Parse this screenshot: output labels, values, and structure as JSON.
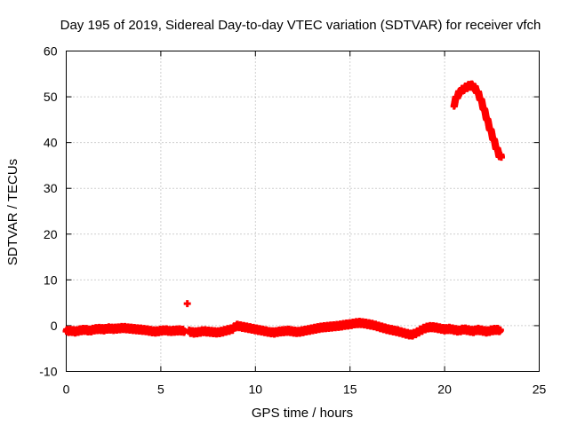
{
  "chart_data": {
    "type": "scatter",
    "title": "Day 195 of 2019, Sidereal Day-to-day VTEC variation (SDTVAR) for receiver vfch",
    "xlabel": "GPS time / hours",
    "ylabel": "SDTVAR / TECUs",
    "xlim": [
      0,
      25
    ],
    "ylim": [
      -10,
      60
    ],
    "xticks": [
      0,
      5,
      10,
      15,
      20,
      25
    ],
    "xtick_labels": [
      "0",
      "5",
      "10",
      "15",
      "20",
      "25"
    ],
    "yticks": [
      -10,
      0,
      10,
      20,
      30,
      40,
      50,
      60
    ],
    "ytick_labels": [
      "-10",
      "0",
      "10",
      "20",
      "30",
      "40",
      "50",
      "60"
    ],
    "grid": true,
    "series": [
      {
        "name": "SDTVAR",
        "color": "#ff0000",
        "marker": "plus",
        "x": [
          0.0,
          0.25,
          0.5,
          0.75,
          1.0,
          1.25,
          1.5,
          1.75,
          2.0,
          2.25,
          2.5,
          2.75,
          3.0,
          3.25,
          3.5,
          3.75,
          4.0,
          4.25,
          4.5,
          4.75,
          5.0,
          5.25,
          5.5,
          5.75,
          6.0,
          6.25,
          6.4,
          6.5,
          6.75,
          7.0,
          7.25,
          7.5,
          7.75,
          8.0,
          8.25,
          8.5,
          8.75,
          9.0,
          9.25,
          9.5,
          9.75,
          10.0,
          10.25,
          10.5,
          10.75,
          11.0,
          11.25,
          11.5,
          11.75,
          12.0,
          12.25,
          12.5,
          12.75,
          13.0,
          13.25,
          13.5,
          13.75,
          14.0,
          14.25,
          14.5,
          14.75,
          15.0,
          15.25,
          15.5,
          15.75,
          16.0,
          16.25,
          16.5,
          16.75,
          17.0,
          17.25,
          17.5,
          17.75,
          18.0,
          18.25,
          18.5,
          18.75,
          19.0,
          19.25,
          19.5,
          19.75,
          20.0,
          20.25,
          20.5,
          20.75,
          21.0,
          21.25,
          21.5,
          21.75,
          22.0,
          22.25,
          22.5,
          22.75,
          22.95,
          20.5,
          20.6,
          20.7,
          20.8,
          20.9,
          21.0,
          21.1,
          21.2,
          21.3,
          21.4,
          21.5,
          21.6,
          21.7,
          21.8,
          21.9,
          22.0,
          22.1,
          22.2,
          22.3,
          22.4,
          22.5,
          22.6,
          22.7,
          22.8,
          22.9,
          23.0
        ],
        "y": [
          -1.2,
          -1.1,
          -1.3,
          -1.0,
          -0.9,
          -1.1,
          -0.8,
          -0.7,
          -0.8,
          -0.6,
          -0.7,
          -0.6,
          -0.5,
          -0.6,
          -0.7,
          -0.8,
          -0.9,
          -1.0,
          -1.2,
          -1.3,
          -1.1,
          -1.0,
          -1.2,
          -1.1,
          -1.0,
          -1.2,
          4.8,
          -1.3,
          -1.5,
          -1.4,
          -1.2,
          -1.3,
          -1.4,
          -1.5,
          -1.3,
          -1.0,
          -0.8,
          0.0,
          -0.2,
          -0.4,
          -0.6,
          -0.8,
          -1.0,
          -1.2,
          -1.4,
          -1.5,
          -1.3,
          -1.2,
          -1.1,
          -1.3,
          -1.4,
          -1.2,
          -1.0,
          -0.8,
          -0.6,
          -0.4,
          -0.3,
          -0.2,
          -0.1,
          0.0,
          0.2,
          0.3,
          0.5,
          0.6,
          0.5,
          0.3,
          0.1,
          -0.2,
          -0.5,
          -0.8,
          -1.0,
          -1.2,
          -1.5,
          -1.8,
          -2.0,
          -1.6,
          -1.0,
          -0.5,
          -0.3,
          -0.4,
          -0.6,
          -0.8,
          -0.7,
          -0.9,
          -1.1,
          -0.8,
          -1.0,
          -1.2,
          -0.9,
          -1.1,
          -1.3,
          -1.0,
          -0.9,
          -1.0,
          48.3,
          49.6,
          50.4,
          51.0,
          51.4,
          51.7,
          52.0,
          52.2,
          52.4,
          52.5,
          52.3,
          51.9,
          51.3,
          50.5,
          49.5,
          48.3,
          47.0,
          45.7,
          44.3,
          43.0,
          41.8,
          40.5,
          39.3,
          38.2,
          37.2,
          36.8
        ]
      }
    ]
  }
}
